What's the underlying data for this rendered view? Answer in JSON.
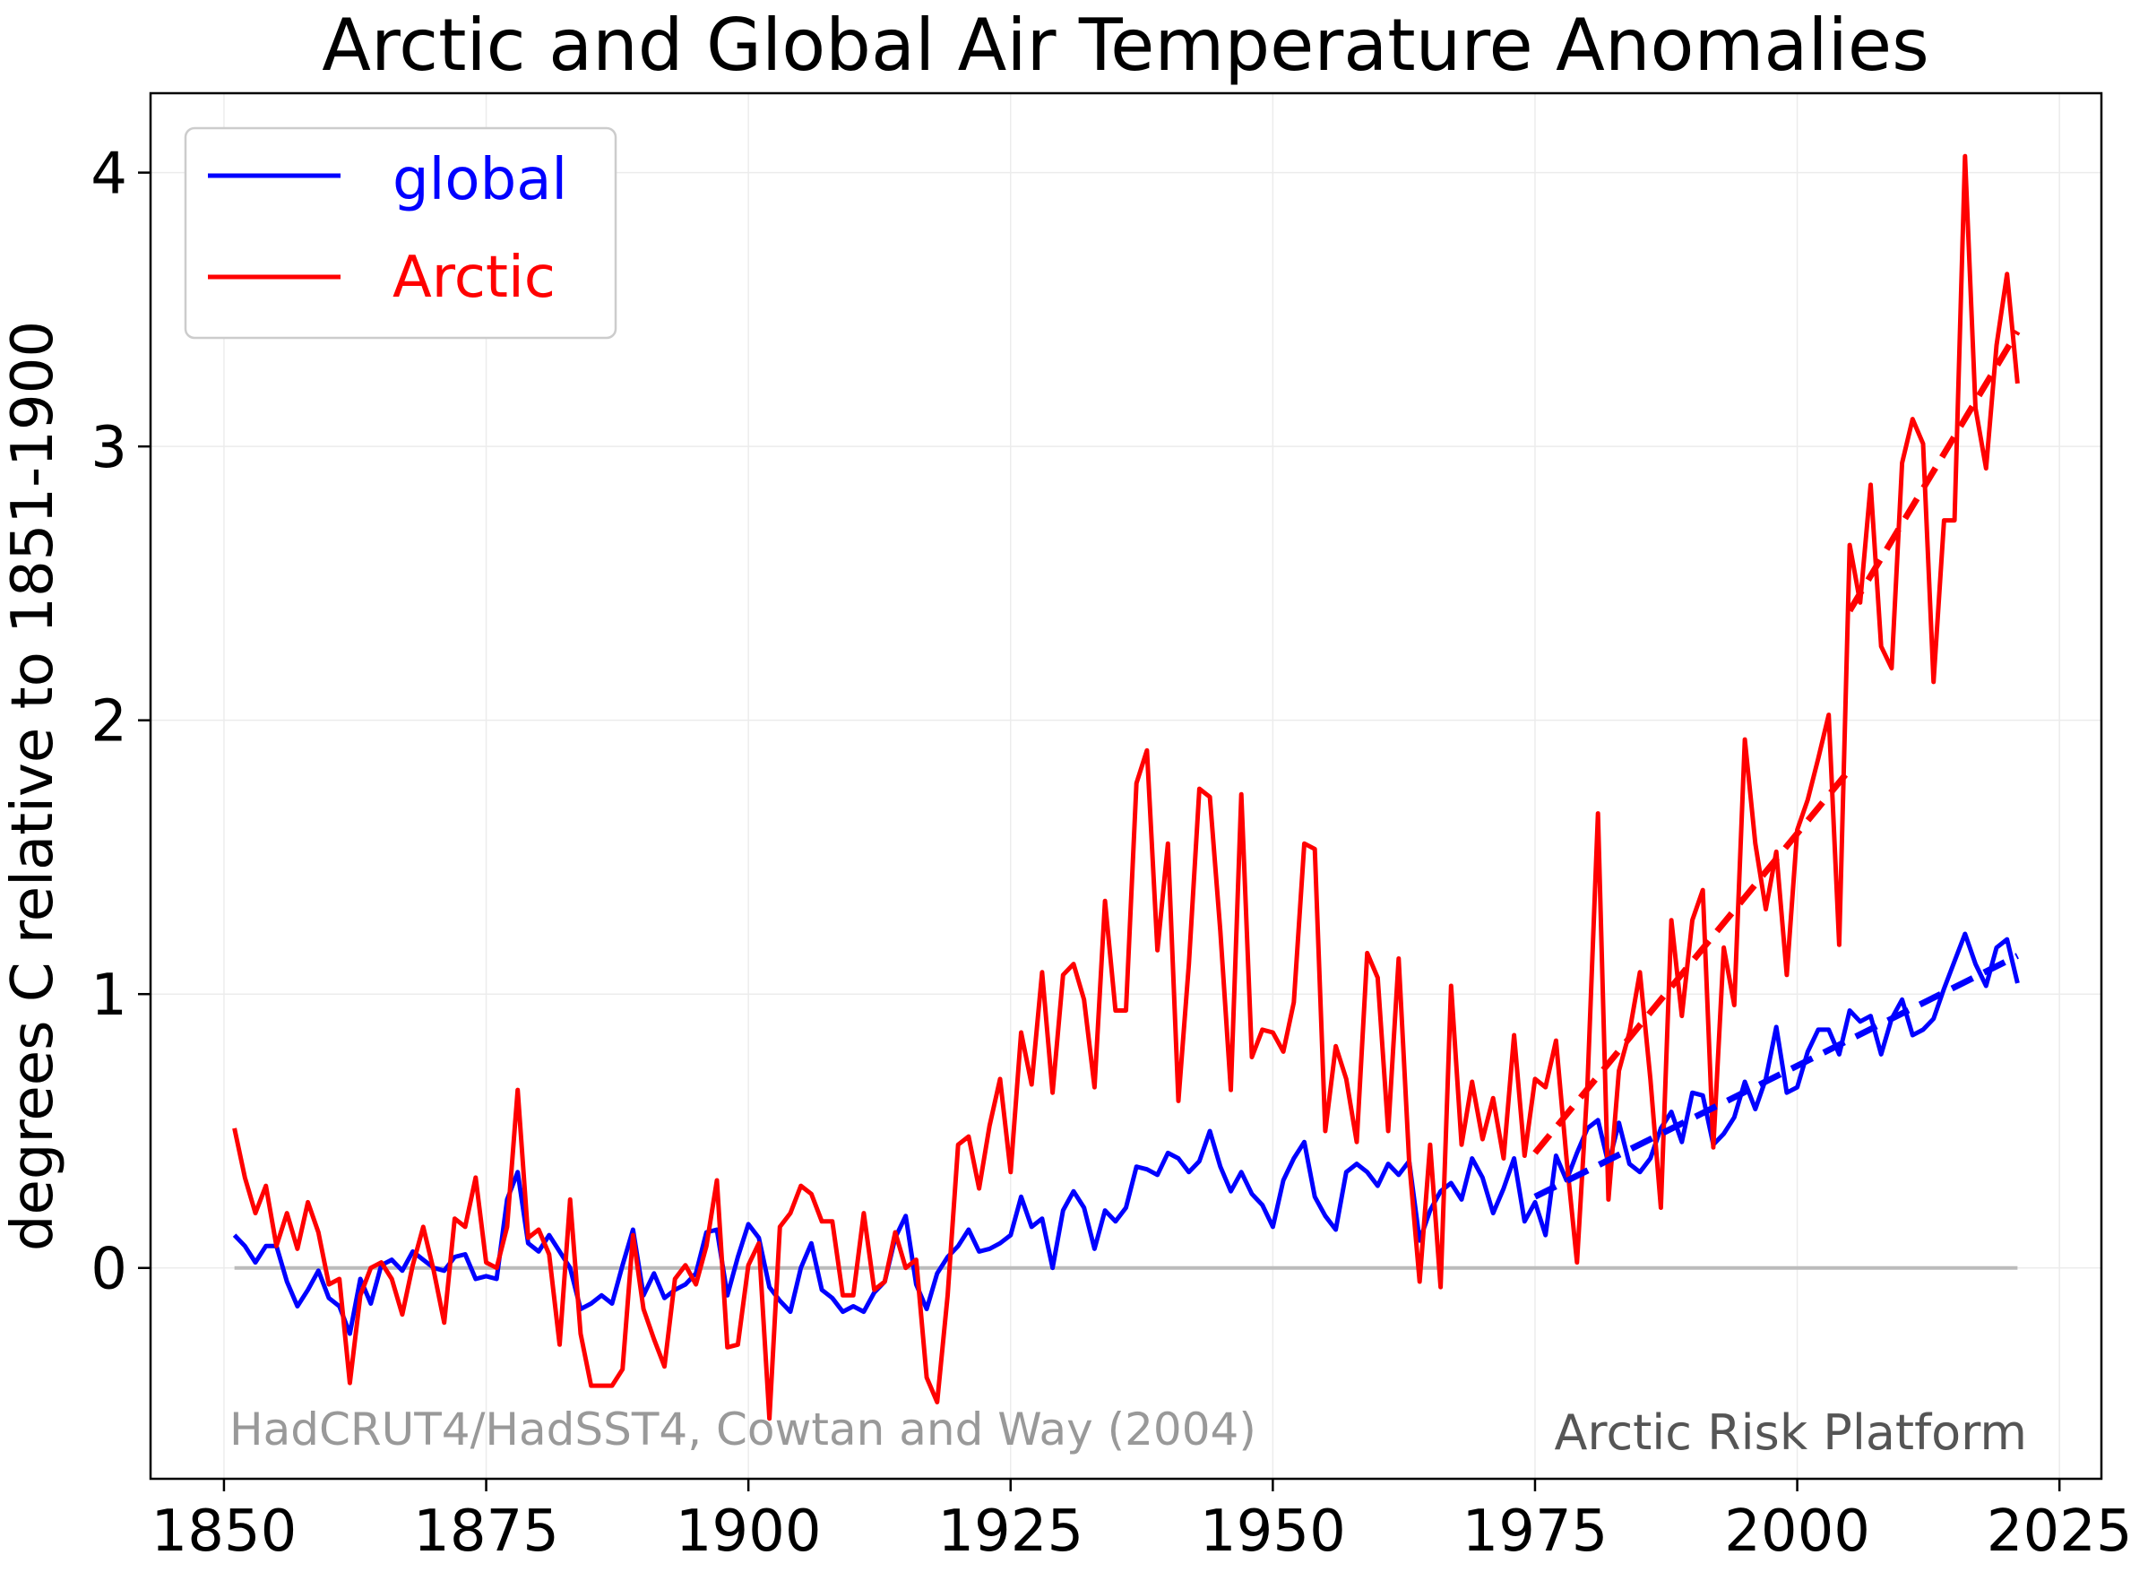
{
  "chart_data": {
    "type": "line",
    "title": "Arctic and Global Air Temperature Anomalies",
    "xlabel": "",
    "ylabel": "degrees C relative to 1851-1900",
    "xlim": [
      1843,
      2029
    ],
    "ylim": [
      -0.77,
      4.29
    ],
    "x_ticks": [
      1850,
      1875,
      1900,
      1925,
      1950,
      1975,
      2000,
      2025
    ],
    "y_ticks": [
      0,
      1,
      2,
      3,
      4
    ],
    "grid": true,
    "legend_position": "top-left",
    "source_note": "HadCRUT4/HadSST4, Cowtan and Way (2004)",
    "platform_note": "Arctic Risk Platform",
    "x_start": 1851,
    "series": [
      {
        "name": "global",
        "color": "#0000ff",
        "values": [
          0.12,
          0.08,
          0.02,
          0.08,
          0.08,
          -0.05,
          -0.14,
          -0.08,
          -0.01,
          -0.11,
          -0.14,
          -0.24,
          -0.04,
          -0.13,
          0.01,
          0.03,
          -0.01,
          0.06,
          0.03,
          0.0,
          -0.01,
          0.04,
          0.05,
          -0.04,
          -0.03,
          -0.04,
          0.25,
          0.35,
          0.09,
          0.06,
          0.12,
          0.06,
          0.0,
          -0.15,
          -0.13,
          -0.1,
          -0.13,
          0.01,
          0.14,
          -0.1,
          -0.02,
          -0.11,
          -0.08,
          -0.06,
          -0.02,
          0.13,
          0.14,
          -0.1,
          0.04,
          0.16,
          0.11,
          -0.07,
          -0.12,
          -0.16,
          0.0,
          0.09,
          -0.08,
          -0.11,
          -0.16,
          -0.14,
          -0.16,
          -0.09,
          -0.05,
          0.11,
          0.19,
          -0.06,
          -0.15,
          -0.02,
          0.04,
          0.08,
          0.14,
          0.06,
          0.07,
          0.09,
          0.12,
          0.26,
          0.15,
          0.18,
          0.0,
          0.21,
          0.28,
          0.22,
          0.07,
          0.21,
          0.17,
          0.22,
          0.37,
          0.36,
          0.34,
          0.42,
          0.4,
          0.35,
          0.39,
          0.5,
          0.37,
          0.28,
          0.35,
          0.27,
          0.23,
          0.15,
          0.32,
          0.4,
          0.46,
          0.26,
          0.19,
          0.14,
          0.35,
          0.38,
          0.35,
          0.3,
          0.38,
          0.34,
          0.39,
          0.1,
          0.21,
          0.28,
          0.31,
          0.25,
          0.4,
          0.33,
          0.2,
          0.29,
          0.4,
          0.17,
          0.24,
          0.12,
          0.41,
          0.32,
          0.42,
          0.51,
          0.54,
          0.38,
          0.53,
          0.38,
          0.35,
          0.4,
          0.51,
          0.57,
          0.46,
          0.64,
          0.63,
          0.45,
          0.49,
          0.55,
          0.68,
          0.58,
          0.69,
          0.88,
          0.64,
          0.66,
          0.79,
          0.87,
          0.87,
          0.78,
          0.94,
          0.9,
          0.92,
          0.78,
          0.91,
          0.98,
          0.85,
          0.87,
          0.91,
          1.02,
          1.12,
          1.22,
          1.11,
          1.03,
          1.17,
          1.2,
          1.04
        ]
      },
      {
        "name": "Arctic",
        "color": "#ff0000",
        "values": [
          0.51,
          0.33,
          0.2,
          0.3,
          0.08,
          0.2,
          0.07,
          0.24,
          0.13,
          -0.06,
          -0.04,
          -0.42,
          -0.1,
          0.0,
          0.02,
          -0.04,
          -0.17,
          0.01,
          0.15,
          -0.01,
          -0.2,
          0.18,
          0.15,
          0.33,
          0.02,
          0.0,
          0.15,
          0.65,
          0.11,
          0.14,
          0.05,
          -0.28,
          0.25,
          -0.24,
          -0.43,
          -0.43,
          -0.43,
          -0.37,
          0.12,
          -0.15,
          -0.26,
          -0.36,
          -0.04,
          0.01,
          -0.06,
          0.08,
          0.32,
          -0.29,
          -0.28,
          0.01,
          0.09,
          -0.55,
          0.15,
          0.2,
          0.3,
          0.27,
          0.17,
          0.17,
          -0.1,
          -0.1,
          0.2,
          -0.08,
          -0.05,
          0.13,
          0.0,
          0.03,
          -0.4,
          -0.49,
          -0.1,
          0.45,
          0.48,
          0.29,
          0.52,
          0.69,
          0.35,
          0.86,
          0.67,
          1.08,
          0.64,
          1.07,
          1.11,
          0.98,
          0.66,
          1.34,
          0.94,
          0.94,
          1.77,
          1.89,
          1.16,
          1.55,
          0.61,
          1.11,
          1.75,
          1.72,
          1.23,
          0.65,
          1.73,
          0.77,
          0.87,
          0.86,
          0.79,
          0.97,
          1.55,
          1.53,
          0.5,
          0.81,
          0.69,
          0.46,
          1.15,
          1.06,
          0.5,
          1.13,
          0.39,
          -0.05,
          0.45,
          -0.07,
          1.03,
          0.45,
          0.68,
          0.47,
          0.62,
          0.4,
          0.85,
          0.41,
          0.69,
          0.66,
          0.83,
          0.4,
          0.02,
          0.67,
          1.66,
          0.25,
          0.72,
          0.86,
          1.08,
          0.69,
          0.22,
          1.27,
          0.92,
          1.27,
          1.38,
          0.44,
          1.17,
          0.96,
          1.93,
          1.55,
          1.31,
          1.52,
          1.07,
          1.6,
          1.71,
          1.86,
          2.02,
          1.18,
          2.64,
          2.43,
          2.86,
          2.27,
          2.19,
          2.94,
          3.1,
          3.01,
          2.14,
          2.73,
          2.73,
          4.06,
          3.14,
          2.92,
          3.37,
          3.63,
          3.23
        ]
      }
    ],
    "trends": [
      {
        "series": "Arctic",
        "color": "#ff0000",
        "segments": [
          {
            "x": [
              1975,
              2005
            ],
            "y": [
              0.42,
              1.82
            ]
          },
          {
            "x": [
              2005,
              2021
            ],
            "y": [
              2.4,
              3.42
            ]
          }
        ]
      },
      {
        "series": "global",
        "color": "#0000ff",
        "segments": [
          {
            "x": [
              1975,
              2021
            ],
            "y": [
              0.26,
              1.14
            ]
          }
        ]
      }
    ],
    "zero_line": {
      "x": [
        1851,
        2021
      ],
      "y": 0,
      "color": "#bbbbbb"
    }
  }
}
